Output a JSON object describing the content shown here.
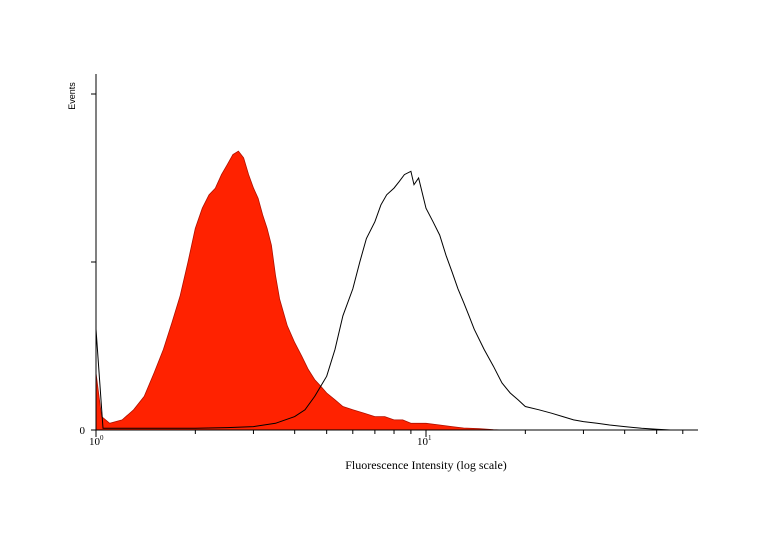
{
  "chart_data": {
    "type": "area",
    "xlabel": "Fluorescence Intensity (log scale)",
    "ylabel": "Events",
    "x_scale": "log",
    "xlim": [
      1,
      60
    ],
    "ylim": [
      0,
      100
    ],
    "x_tick_labels": [
      {
        "value": 1,
        "base": "10",
        "exp": "0"
      },
      {
        "value": 10,
        "base": "10",
        "exp": "1"
      }
    ],
    "y_tick_labels": [
      {
        "value": 0,
        "label": "0"
      }
    ],
    "grid": false,
    "legend": "none",
    "series": [
      {
        "style": "filled",
        "color": "#ff2200",
        "x": [
          1.0,
          1.04,
          1.1,
          1.2,
          1.3,
          1.4,
          1.5,
          1.6,
          1.7,
          1.8,
          1.9,
          2.0,
          2.1,
          2.2,
          2.3,
          2.4,
          2.5,
          2.6,
          2.7,
          2.8,
          2.9,
          3.0,
          3.1,
          3.2,
          3.3,
          3.4,
          3.5,
          3.6,
          3.8,
          4.0,
          4.2,
          4.4,
          4.6,
          4.8,
          5.0,
          5.3,
          5.6,
          6.0,
          6.5,
          7.0,
          7.5,
          8.0,
          8.5,
          9.0,
          10.0,
          11.0,
          12.0,
          13.0,
          14.5,
          16.0,
          17.0
        ],
        "y": [
          17,
          4,
          2,
          3,
          6,
          10,
          17,
          24,
          32,
          40,
          50,
          60,
          66,
          70,
          72,
          76,
          79,
          82,
          83,
          81,
          76,
          72,
          69,
          64,
          60,
          55,
          46,
          39,
          31,
          26,
          22,
          18,
          15,
          13,
          11,
          9,
          7,
          6,
          5,
          4,
          4,
          3,
          3,
          2,
          2,
          1.5,
          1,
          0.6,
          0.4,
          0.1,
          0
        ]
      },
      {
        "style": "outline",
        "color": "#000000",
        "x": [
          1.0,
          1.05,
          1.2,
          1.5,
          2.0,
          2.5,
          3.0,
          3.5,
          4.0,
          4.3,
          4.6,
          5.0,
          5.3,
          5.6,
          6.0,
          6.3,
          6.6,
          7.0,
          7.3,
          7.6,
          8.0,
          8.3,
          8.6,
          9.0,
          9.2,
          9.5,
          10.0,
          10.5,
          11.0,
          11.5,
          12.0,
          12.5,
          13.0,
          13.5,
          14.0,
          15.0,
          16.0,
          17.0,
          18.0,
          19.0,
          20.0,
          22.0,
          24.0,
          26.0,
          28.0,
          30.0,
          33.0,
          36.0,
          40.0,
          45.0,
          50.0,
          55.0
        ],
        "y": [
          30,
          0.5,
          0.5,
          0.5,
          0.5,
          0.7,
          1,
          2,
          4,
          6,
          10,
          16,
          24,
          34,
          42,
          50,
          57,
          62,
          67,
          70,
          72,
          74,
          76,
          77,
          73,
          75,
          66,
          62,
          58,
          52,
          47,
          42,
          38,
          34,
          30,
          24,
          19,
          14,
          11,
          9,
          7,
          6,
          5,
          4,
          3,
          2.5,
          2,
          1.5,
          1,
          0.5,
          0.2,
          0
        ]
      }
    ]
  }
}
